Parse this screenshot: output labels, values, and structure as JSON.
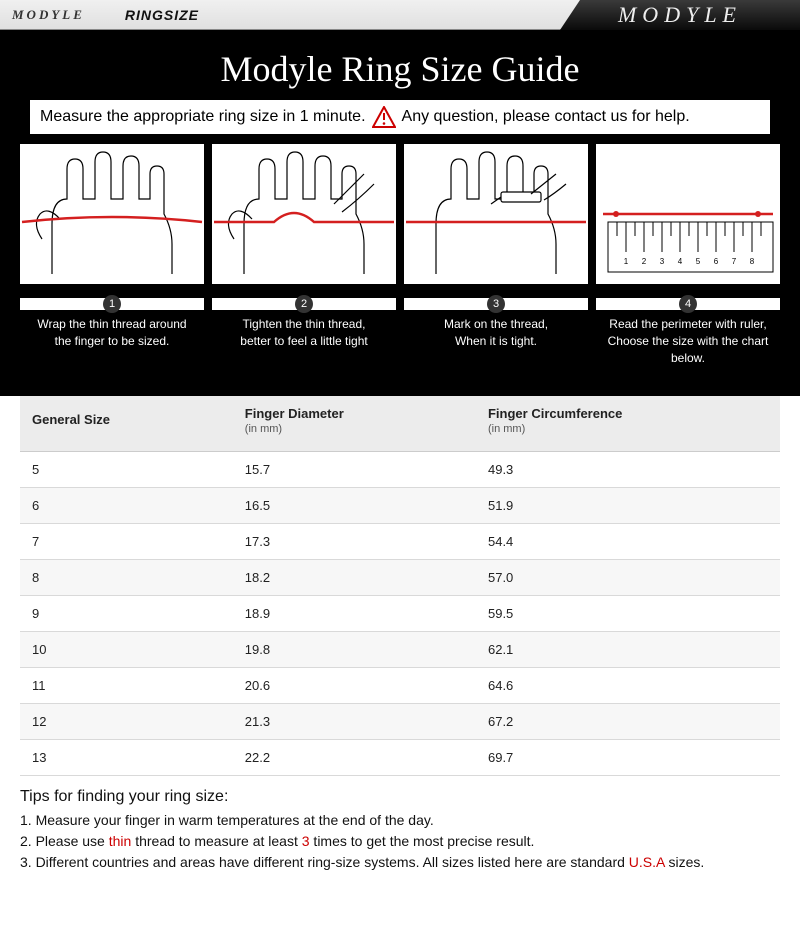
{
  "header": {
    "brand_left": "MODYLE",
    "ringsize_label": "RINGSIZE",
    "brand_right": "MODYLE"
  },
  "hero": {
    "title": "Modyle Ring Size Guide",
    "bg_color": "#000000",
    "title_color": "#ffffff",
    "title_fontsize": 36
  },
  "instruction": {
    "left": "Measure the appropriate ring size in 1 minute.",
    "right": "Any question, please contact us for help.",
    "alert_color": "#cc0000"
  },
  "steps": {
    "thread_color": "#d41f1f",
    "items": [
      {
        "num": "1",
        "caption_l1": "Wrap the thin thread around",
        "caption_l2": "the finger to be sized."
      },
      {
        "num": "2",
        "caption_l1": "Tighten the thin thread,",
        "caption_l2": "better to feel a little tight"
      },
      {
        "num": "3",
        "caption_l1": "Mark on the thread,",
        "caption_l2": "When it is tight."
      },
      {
        "num": "4",
        "caption_l1": "Read the perimeter with ruler,",
        "caption_l2": "Choose the size with the chart below."
      }
    ]
  },
  "table": {
    "type": "table",
    "columns": [
      {
        "label": "General Size",
        "unit": ""
      },
      {
        "label": "Finger Diameter",
        "unit": "(in mm)"
      },
      {
        "label": "Finger Circumference",
        "unit": "(in mm)"
      }
    ],
    "rows": [
      [
        "5",
        "15.7",
        "49.3"
      ],
      [
        "6",
        "16.5",
        "51.9"
      ],
      [
        "7",
        "17.3",
        "54.4"
      ],
      [
        "8",
        "18.2",
        "57.0"
      ],
      [
        "9",
        "18.9",
        "59.5"
      ],
      [
        "10",
        "19.8",
        "62.1"
      ],
      [
        "11",
        "20.6",
        "64.6"
      ],
      [
        "12",
        "21.3",
        "67.2"
      ],
      [
        "13",
        "22.2",
        "69.7"
      ]
    ],
    "header_bg": "#ececec",
    "row_alt_bg": "#f7f7f7",
    "border_color": "#d9d9d9",
    "font_size": 13,
    "col_widths_pct": [
      28,
      32,
      40
    ]
  },
  "tips": {
    "title": "Tips for finding your ring size:",
    "line1_a": "1. Measure your finger in warm temperatures at the end of the day.",
    "line2_a": "2. Please use ",
    "line2_red1": "thin",
    "line2_b": " thread to measure at least ",
    "line2_red2": "3",
    "line2_c": " times to get the most precise result.",
    "line3_a": "3. Different countries and areas have different ring-size systems. All sizes listed here are standard ",
    "line3_red": "U.S.A",
    "line3_b": " sizes.",
    "red_color": "#cc0000"
  }
}
